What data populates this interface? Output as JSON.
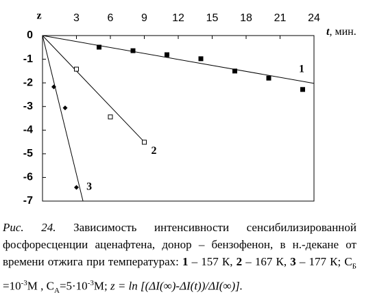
{
  "chart_data": {
    "type": "scatter",
    "y_label": "z",
    "x_label": "t",
    "x_unit": ", мин.",
    "xlim": [
      0,
      24
    ],
    "xticks": [
      3,
      6,
      9,
      12,
      15,
      18,
      21,
      24
    ],
    "ylim": [
      -7,
      0
    ],
    "yticks": [
      0,
      -1,
      -2,
      -3,
      -4,
      -5,
      -6,
      -7
    ],
    "series": [
      {
        "name": "1",
        "marker": "square-filled",
        "color": "#000000",
        "x": [
          5,
          8,
          11,
          14,
          17,
          20,
          23
        ],
        "values": [
          -0.49,
          -0.64,
          -0.81,
          -0.98,
          -1.5,
          -1.8,
          -2.28
        ],
        "fit_x": [
          0,
          24
        ],
        "fit_values": [
          0,
          -2.02
        ]
      },
      {
        "name": "2",
        "marker": "square-open",
        "color": "#000000",
        "x": [
          3,
          6,
          9
        ],
        "values": [
          -1.42,
          -3.44,
          -4.51
        ],
        "fit_x": [
          0,
          9
        ],
        "fit_values": [
          0,
          -4.5
        ]
      },
      {
        "name": "3",
        "marker": "diamond-filled",
        "color": "#000000",
        "x": [
          1,
          2,
          3
        ],
        "values": [
          -2.17,
          -3.06,
          -6.42
        ],
        "fit_x": [
          0,
          3.58
        ],
        "fit_values": [
          0,
          -7
        ]
      }
    ]
  },
  "caption": [
    {
      "text": "Рис. 24.",
      "style": "i"
    },
    {
      "text": " Зависимость интенсивности сенсибилизированной фосфоресценции аценафтена, донор – бензофенон, в н.-декане от времени отжига при температурах: ",
      "style": "n"
    },
    {
      "text": "1",
      "style": "b"
    },
    {
      "text": " – 157 К, ",
      "style": "n"
    },
    {
      "text": "2",
      "style": "b"
    },
    {
      "text": " – 167 К, ",
      "style": "n"
    },
    {
      "text": "3",
      "style": "b"
    },
    {
      "text": " – 177 К; С",
      "style": "n"
    },
    {
      "text": "Б",
      "style": "sub"
    },
    {
      "text": " =10",
      "style": "n"
    },
    {
      "text": "-3",
      "style": "sup"
    },
    {
      "text": "М , С",
      "style": "n"
    },
    {
      "text": "А",
      "style": "sub"
    },
    {
      "text": "=5·10",
      "style": "n"
    },
    {
      "text": "-3",
      "style": "sup"
    },
    {
      "text": "М; ",
      "style": "n"
    },
    {
      "text": "z = ln [(ΔI(∞)-ΔI(t))/ΔI(∞)].",
      "style": "i"
    }
  ]
}
